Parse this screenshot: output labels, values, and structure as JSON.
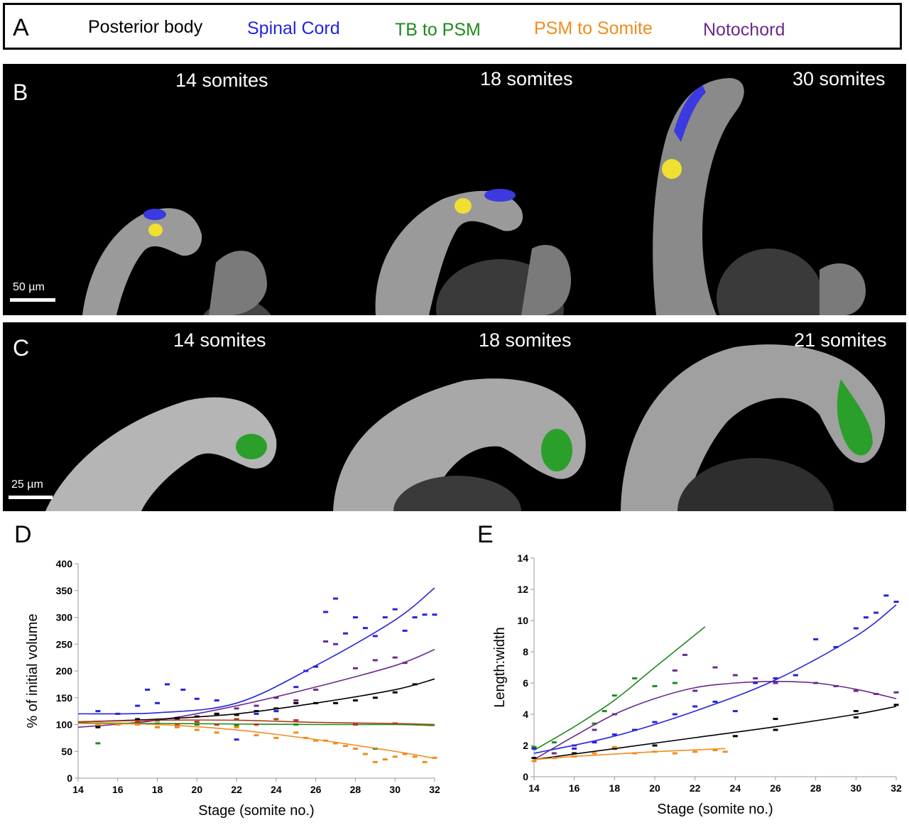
{
  "panel_a": {
    "letter": "A",
    "legend": [
      {
        "label": "Posterior body",
        "color": "#000000"
      },
      {
        "label": "Spinal Cord",
        "color": "#2424e0"
      },
      {
        "label": "TB to PSM",
        "color": "#1e8a1e"
      },
      {
        "label": "PSM to Somite",
        "color": "#f08c1e"
      },
      {
        "label": "Notochord",
        "color": "#6a2a8a"
      }
    ]
  },
  "panel_b": {
    "letter": "B",
    "stages": [
      "14 somites",
      "18 somites",
      "30 somites"
    ],
    "scale_bar": "50 µm"
  },
  "panel_c": {
    "letter": "C",
    "stages": [
      "14 somites",
      "18 somites",
      "21 somites"
    ],
    "scale_bar": "25 µm"
  },
  "chart_data": [
    {
      "panel": "D",
      "type": "scatter",
      "xlabel": "Stage (somite no.)",
      "ylabel": "% of initial volume",
      "xlim": [
        14,
        32
      ],
      "ylim": [
        0,
        400
      ],
      "xticks": [
        14,
        16,
        18,
        20,
        22,
        24,
        26,
        28,
        30,
        32
      ],
      "yticks": [
        0,
        50,
        100,
        150,
        200,
        250,
        300,
        350,
        400
      ],
      "series": [
        {
          "color": "#2424e0",
          "points": [
            [
              15,
              125
            ],
            [
              16,
              120
            ],
            [
              17,
              135
            ],
            [
              17.5,
              165
            ],
            [
              18,
              140
            ],
            [
              18.5,
              175
            ],
            [
              19.3,
              165
            ],
            [
              20,
              148
            ],
            [
              21,
              145
            ],
            [
              22,
              72
            ],
            [
              23,
              120
            ],
            [
              24,
              125
            ],
            [
              25,
              170
            ],
            [
              25.5,
              200
            ],
            [
              26,
              208
            ],
            [
              26.5,
              310
            ],
            [
              27,
              335
            ],
            [
              27.5,
              270
            ],
            [
              28,
              300
            ],
            [
              28.5,
              280
            ],
            [
              29,
              265
            ],
            [
              29.5,
              300
            ],
            [
              30,
              315
            ],
            [
              30.5,
              275
            ],
            [
              31,
              300
            ],
            [
              31.5,
              305
            ],
            [
              32,
              305
            ]
          ],
          "curve": [
            [
              14,
              120
            ],
            [
              18,
              122
            ],
            [
              22,
              140
            ],
            [
              26,
              210
            ],
            [
              30,
              295
            ],
            [
              32,
              355
            ]
          ]
        },
        {
          "color": "#6a2a8a",
          "points": [
            [
              15,
              100
            ],
            [
              17,
              100
            ],
            [
              19,
              110
            ],
            [
              21,
              120
            ],
            [
              22,
              130
            ],
            [
              23,
              135
            ],
            [
              24,
              150
            ],
            [
              25,
              145
            ],
            [
              26,
              165
            ],
            [
              26.5,
              255
            ],
            [
              27,
              250
            ],
            [
              28,
              205
            ],
            [
              29,
              220
            ],
            [
              30,
              225
            ],
            [
              30.5,
              215
            ]
          ],
          "curve": [
            [
              14,
              95
            ],
            [
              18,
              108
            ],
            [
              22,
              135
            ],
            [
              26,
              170
            ],
            [
              30,
              210
            ],
            [
              32,
              240
            ]
          ]
        },
        {
          "color": "#000000",
          "points": [
            [
              15,
              95
            ],
            [
              16,
              100
            ],
            [
              17,
              110
            ],
            [
              18,
              108
            ],
            [
              19,
              112
            ],
            [
              20,
              115
            ],
            [
              21,
              120
            ],
            [
              22,
              118
            ],
            [
              23,
              125
            ],
            [
              24,
              130
            ],
            [
              25,
              140
            ],
            [
              26,
              140
            ],
            [
              27,
              140
            ],
            [
              28,
              145
            ],
            [
              29,
              150
            ],
            [
              30,
              160
            ],
            [
              31,
              175
            ]
          ],
          "curve": [
            [
              14,
              105
            ],
            [
              18,
              110
            ],
            [
              22,
              120
            ],
            [
              26,
              140
            ],
            [
              30,
              165
            ],
            [
              32,
              185
            ]
          ]
        },
        {
          "color": "#1e8a1e",
          "points": [
            [
              15,
              65
            ],
            [
              16,
              100
            ],
            [
              17,
              100
            ],
            [
              18,
              102
            ],
            [
              19,
              98
            ],
            [
              20,
              100
            ],
            [
              21,
              100
            ],
            [
              22,
              98
            ],
            [
              25,
              100
            ],
            [
              28,
              100
            ],
            [
              29,
              55
            ]
          ],
          "curve": [
            [
              14,
              103
            ],
            [
              18,
              102
            ],
            [
              22,
              101
            ],
            [
              26,
              100
            ],
            [
              30,
              100
            ],
            [
              32,
              98
            ]
          ]
        },
        {
          "color": "#b23b1e",
          "points": [
            [
              15,
              100
            ],
            [
              17,
              105
            ],
            [
              18,
              95
            ],
            [
              19,
              100
            ],
            [
              20,
              105
            ],
            [
              21,
              100
            ],
            [
              22,
              110
            ],
            [
              23,
              100
            ],
            [
              24,
              110
            ],
            [
              25,
              108
            ],
            [
              28,
              100
            ],
            [
              30,
              102
            ]
          ],
          "curve": [
            [
              14,
              105
            ],
            [
              18,
              108
            ],
            [
              22,
              108
            ],
            [
              26,
              104
            ],
            [
              30,
              102
            ],
            [
              32,
              100
            ]
          ]
        },
        {
          "color": "#f08c1e",
          "points": [
            [
              15,
              100
            ],
            [
              16,
              100
            ],
            [
              17,
              100
            ],
            [
              18,
              95
            ],
            [
              19,
              95
            ],
            [
              20,
              90
            ],
            [
              21,
              85
            ],
            [
              22,
              95
            ],
            [
              23,
              80
            ],
            [
              24,
              75
            ],
            [
              25,
              85
            ],
            [
              25.5,
              75
            ],
            [
              26,
              70
            ],
            [
              26.5,
              70
            ],
            [
              27,
              65
            ],
            [
              27.5,
              60
            ],
            [
              28,
              55
            ],
            [
              28.5,
              45
            ],
            [
              29,
              30
            ],
            [
              29.5,
              35
            ],
            [
              30,
              40
            ],
            [
              30.5,
              45
            ],
            [
              31,
              40
            ],
            [
              31.5,
              30
            ],
            [
              32,
              38
            ]
          ],
          "curve": [
            [
              14,
              102
            ],
            [
              18,
              100
            ],
            [
              22,
              90
            ],
            [
              26,
              72
            ],
            [
              30,
              50
            ],
            [
              32,
              37
            ]
          ]
        }
      ]
    },
    {
      "panel": "E",
      "type": "scatter",
      "xlabel": "Stage (somite no.)",
      "ylabel": "Length:width",
      "xlim": [
        14,
        32
      ],
      "ylim": [
        0,
        14
      ],
      "xticks": [
        14,
        16,
        18,
        20,
        22,
        24,
        26,
        28,
        30,
        32
      ],
      "yticks": [
        0,
        2,
        4,
        6,
        8,
        10,
        12,
        14
      ],
      "series": [
        {
          "color": "#1e8a1e",
          "points": [
            [
              14,
              1.9
            ],
            [
              15,
              2.2
            ],
            [
              16,
              2.0
            ],
            [
              17,
              3.4
            ],
            [
              17.5,
              4.2
            ],
            [
              18,
              5.2
            ],
            [
              19,
              6.3
            ],
            [
              20,
              5.8
            ],
            [
              21,
              6.0
            ]
          ],
          "curve": [
            [
              14,
              1.7
            ],
            [
              16,
              3.2
            ],
            [
              18,
              4.9
            ],
            [
              20,
              7.0
            ],
            [
              22.5,
              9.6
            ]
          ]
        },
        {
          "color": "#6a2a8a",
          "points": [
            [
              15,
              1.5
            ],
            [
              16,
              2.0
            ],
            [
              17,
              3.0
            ],
            [
              18,
              4.0
            ],
            [
              19,
              3.0
            ],
            [
              20,
              3.5
            ],
            [
              21,
              6.8
            ],
            [
              21.5,
              7.8
            ],
            [
              22,
              5.5
            ],
            [
              23,
              7.0
            ],
            [
              24,
              6.5
            ],
            [
              25,
              6.3
            ],
            [
              26,
              6.0
            ],
            [
              27,
              6.5
            ],
            [
              28,
              6.0
            ],
            [
              29,
              5.8
            ],
            [
              30,
              5.5
            ],
            [
              31,
              5.3
            ],
            [
              32,
              5.4
            ]
          ],
          "curve": [
            [
              14,
              1.1
            ],
            [
              16,
              2.6
            ],
            [
              18,
              4.0
            ],
            [
              20,
              5.0
            ],
            [
              22,
              5.7
            ],
            [
              24,
              6.0
            ],
            [
              26,
              6.1
            ],
            [
              28,
              6.0
            ],
            [
              30,
              5.6
            ],
            [
              32,
              5.0
            ]
          ]
        },
        {
          "color": "#2424e0",
          "points": [
            [
              14,
              1.8
            ],
            [
              16,
              1.8
            ],
            [
              17,
              2.2
            ],
            [
              18,
              2.7
            ],
            [
              19,
              3.0
            ],
            [
              20,
              3.5
            ],
            [
              21,
              4.0
            ],
            [
              22,
              4.5
            ],
            [
              23,
              4.8
            ],
            [
              24,
              4.2
            ],
            [
              25,
              6.0
            ],
            [
              26,
              6.3
            ],
            [
              27,
              6.5
            ],
            [
              28,
              8.8
            ],
            [
              29,
              8.3
            ],
            [
              30,
              9.5
            ],
            [
              30.5,
              10.2
            ],
            [
              31,
              10.5
            ],
            [
              31.5,
              11.6
            ],
            [
              32,
              11.2
            ]
          ],
          "curve": [
            [
              14,
              1.5
            ],
            [
              18,
              2.6
            ],
            [
              22,
              4.2
            ],
            [
              26,
              6.2
            ],
            [
              30,
              9.0
            ],
            [
              32,
              11.0
            ]
          ]
        },
        {
          "color": "#000000",
          "points": [
            [
              14,
              1.2
            ],
            [
              16,
              1.5
            ],
            [
              18,
              1.8
            ],
            [
              20,
              2.0
            ],
            [
              24,
              2.6
            ],
            [
              26,
              3.0
            ],
            [
              26,
              3.7
            ],
            [
              30,
              3.8
            ],
            [
              30,
              4.2
            ],
            [
              32,
              4.6
            ]
          ],
          "curve": [
            [
              14,
              1.1
            ],
            [
              18,
              1.8
            ],
            [
              22,
              2.5
            ],
            [
              26,
              3.2
            ],
            [
              30,
              4.0
            ],
            [
              32,
              4.5
            ]
          ]
        },
        {
          "color": "#f08c1e",
          "points": [
            [
              14,
              1.0
            ],
            [
              15,
              1.2
            ],
            [
              16,
              1.3
            ],
            [
              17,
              1.5
            ],
            [
              18,
              1.9
            ],
            [
              19,
              1.5
            ],
            [
              20,
              1.6
            ],
            [
              21,
              1.5
            ],
            [
              22,
              1.6
            ],
            [
              23,
              1.7
            ],
            [
              23.5,
              1.6
            ]
          ],
          "curve": [
            [
              14,
              1.1
            ],
            [
              16,
              1.3
            ],
            [
              18,
              1.45
            ],
            [
              20,
              1.6
            ],
            [
              22,
              1.72
            ],
            [
              23.5,
              1.8
            ]
          ]
        }
      ]
    }
  ]
}
